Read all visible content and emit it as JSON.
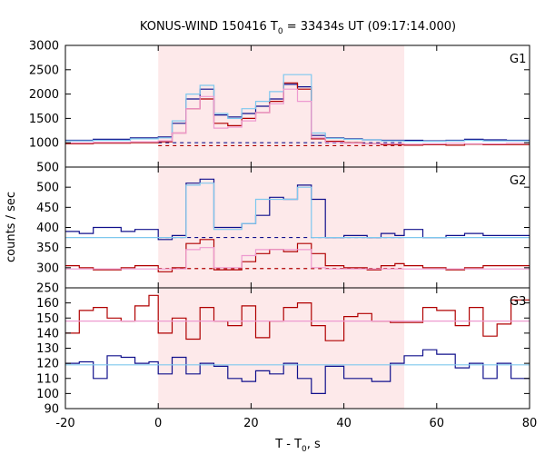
{
  "chart_data": {
    "type": "line",
    "title_parts": [
      "KONUS-WIND 150416 T",
      "0",
      " = 33434s UT (09:17:14.000)"
    ],
    "xlabel_parts": [
      "T - T",
      "0",
      ", s"
    ],
    "ylabel": "counts / sec",
    "xlim": [
      -20,
      80
    ],
    "xticks": [
      "-20",
      "0",
      "20",
      "40",
      "60",
      "80"
    ],
    "highlight_interval": [
      0,
      53
    ],
    "colors": {
      "highlight": "#fde9ea",
      "dark_red": "#b00000",
      "dark_blue": "#10108c",
      "light_blue": "#7ec8ee",
      "pink": "#ee9ad0",
      "frame": "#000000"
    },
    "panels": [
      {
        "name": "G1",
        "ylim": [
          500,
          3000
        ],
        "yticks": [
          "500",
          "1000",
          "1500",
          "2000",
          "2500",
          "3000"
        ],
        "background_levels": [
          {
            "series": "dark_blue",
            "value": 1000,
            "x": [
              0,
              53
            ]
          },
          {
            "series": "dark_red",
            "value": 940,
            "x": [
              0,
              53
            ]
          }
        ],
        "series": [
          {
            "color": "dark_blue",
            "edges": [
              -20,
              -14,
              -6,
              0,
              3,
              6,
              9,
              12,
              15,
              18,
              21,
              24,
              27,
              30,
              33,
              36,
              40,
              44,
              48,
              53,
              57,
              62,
              66,
              70,
              75,
              80
            ],
            "values": [
              1050,
              1070,
              1100,
              1120,
              1400,
              1900,
              2100,
              1570,
              1530,
              1600,
              1750,
              1900,
              2200,
              2150,
              1150,
              1100,
              1080,
              1060,
              1050,
              1050,
              1040,
              1050,
              1070,
              1060,
              1050
            ]
          },
          {
            "color": "dark_red",
            "edges": [
              -20,
              -14,
              -6,
              0,
              3,
              6,
              9,
              12,
              15,
              18,
              21,
              24,
              27,
              30,
              33,
              36,
              40,
              44,
              48,
              53,
              57,
              62,
              66,
              70,
              75,
              80
            ],
            "values": [
              980,
              990,
              1000,
              1020,
              1200,
              1700,
              1900,
              1400,
              1350,
              1500,
              1620,
              1850,
              2230,
              2100,
              1080,
              1030,
              1000,
              980,
              960,
              950,
              960,
              950,
              970,
              960,
              960
            ]
          },
          {
            "color": "light_blue",
            "edges": [
              -20,
              -14,
              -6,
              0,
              3,
              6,
              9,
              12,
              15,
              18,
              21,
              24,
              27,
              30,
              33,
              36,
              40,
              44,
              48,
              53,
              57,
              62,
              66,
              70,
              75,
              80
            ],
            "values": [
              1040,
              1050,
              1080,
              1100,
              1450,
              2000,
              2180,
              1600,
              1500,
              1700,
              1850,
              2050,
              2400,
              2400,
              1200,
              1090,
              1070,
              1060,
              1040,
              1030,
              1030,
              1040,
              1050,
              1040,
              1040
            ]
          },
          {
            "color": "pink",
            "edges": [
              -20,
              -14,
              -6,
              0,
              3,
              6,
              9,
              12,
              15,
              18,
              21,
              24,
              27,
              30,
              33,
              36,
              40,
              44,
              48,
              53,
              57,
              62,
              66,
              70,
              75,
              80
            ],
            "values": [
              1000,
              1010,
              1020,
              1040,
              1200,
              1700,
              1950,
              1300,
              1320,
              1450,
              1620,
              1800,
              2100,
              1850,
              1100,
              1010,
              990,
              980,
              980,
              970,
              980,
              990,
              980,
              980,
              990
            ]
          }
        ]
      },
      {
        "name": "G2",
        "ylim": [
          250,
          550
        ],
        "yticks": [
          "250",
          "300",
          "350",
          "400",
          "450",
          "500"
        ],
        "background_levels": [
          {
            "series": "dark_blue",
            "value": 375,
            "x": [
              0,
              53
            ]
          },
          {
            "series": "dark_red",
            "value": 298,
            "x": [
              0,
              53
            ]
          }
        ],
        "series": [
          {
            "color": "dark_blue",
            "edges": [
              -20,
              -17,
              -14,
              -8,
              -5,
              0,
              3,
              6,
              9,
              12,
              18,
              21,
              24,
              27,
              30,
              33,
              36,
              40,
              45,
              48,
              51,
              53,
              57,
              62,
              66,
              70,
              75,
              80
            ],
            "values": [
              390,
              385,
              400,
              390,
              395,
              370,
              380,
              510,
              520,
              400,
              410,
              430,
              475,
              470,
              505,
              470,
              375,
              380,
              375,
              385,
              380,
              395,
              375,
              380,
              385,
              380,
              380
            ]
          },
          {
            "color": "dark_red",
            "edges": [
              -20,
              -17,
              -14,
              -8,
              -5,
              0,
              3,
              6,
              9,
              12,
              18,
              21,
              24,
              27,
              30,
              33,
              36,
              40,
              45,
              48,
              51,
              53,
              57,
              62,
              66,
              70,
              75,
              80
            ],
            "values": [
              305,
              300,
              295,
              300,
              305,
              290,
              300,
              360,
              370,
              295,
              315,
              335,
              345,
              340,
              360,
              335,
              305,
              300,
              295,
              305,
              310,
              305,
              300,
              295,
              300,
              305,
              305
            ]
          },
          {
            "color": "light_blue",
            "edges": [
              -20,
              0,
              6,
              9,
              12,
              18,
              21,
              24,
              30,
              33,
              36,
              80
            ],
            "values": [
              375,
              375,
              505,
              510,
              395,
              410,
              470,
              470,
              500,
              375,
              375
            ]
          },
          {
            "color": "pink",
            "edges": [
              -20,
              0,
              6,
              9,
              12,
              18,
              21,
              24,
              30,
              33,
              36,
              80
            ],
            "values": [
              297,
              297,
              345,
              350,
              300,
              330,
              345,
              345,
              345,
              300,
              297
            ]
          }
        ]
      },
      {
        "name": "G3",
        "ylim": [
          90,
          170
        ],
        "yticks": [
          "90",
          "100",
          "110",
          "120",
          "130",
          "140",
          "150",
          "160"
        ],
        "background_levels": [],
        "series": [
          {
            "color": "dark_red",
            "edges": [
              -20,
              -17,
              -14,
              -11,
              -8,
              -5,
              -2,
              0,
              3,
              6,
              9,
              12,
              15,
              18,
              21,
              24,
              27,
              30,
              33,
              36,
              40,
              43,
              46,
              50,
              53,
              57,
              60,
              64,
              67,
              70,
              73,
              76,
              80
            ],
            "values": [
              140,
              155,
              157,
              150,
              148,
              158,
              165,
              140,
              150,
              136,
              157,
              148,
              145,
              158,
              137,
              148,
              157,
              160,
              145,
              135,
              151,
              153,
              148,
              147,
              147,
              157,
              155,
              145,
              157,
              138,
              146,
              162
            ]
          },
          {
            "color": "dark_blue",
            "edges": [
              -20,
              -17,
              -14,
              -11,
              -8,
              -5,
              -2,
              0,
              3,
              6,
              9,
              12,
              15,
              18,
              21,
              24,
              27,
              30,
              33,
              36,
              40,
              43,
              46,
              50,
              53,
              57,
              60,
              64,
              67,
              70,
              73,
              76,
              80
            ],
            "values": [
              120,
              121,
              110,
              125,
              124,
              120,
              121,
              113,
              124,
              113,
              120,
              118,
              110,
              108,
              115,
              113,
              120,
              110,
              100,
              118,
              110,
              110,
              108,
              120,
              125,
              129,
              126,
              117,
              120,
              110,
              120,
              110
            ]
          },
          {
            "color": "light_blue",
            "edges": [
              -20,
              80
            ],
            "values": [
              119
            ]
          },
          {
            "color": "pink",
            "edges": [
              -20,
              80
            ],
            "values": [
              148
            ]
          }
        ]
      }
    ]
  }
}
